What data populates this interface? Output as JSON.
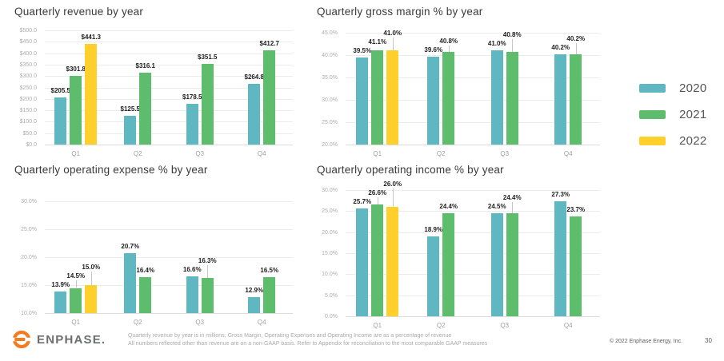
{
  "slide": {
    "logo_text": "ENPHASE.",
    "footnote_line1": "Quarterly revenue by year is in millions; Gross Margin, Operating Expenses and Operating Income are as a percentage of revenue",
    "footnote_line2": "All numbers reflected other than revenue are on a non-GAAP basis. Refer to Appendix for reconciliation to the most comparable GAAP measures",
    "copyright": "© 2022 Enphase Energy, Inc.",
    "page_number": "30"
  },
  "legend": {
    "position": "right",
    "items": [
      {
        "label": "2020",
        "color": "#5FB7C1"
      },
      {
        "label": "2021",
        "color": "#5EBC6D"
      },
      {
        "label": "2022",
        "color": "#FFD02B"
      }
    ]
  },
  "brand": {
    "logo_orange": "#F47B20"
  },
  "chart_data": [
    {
      "type": "bar",
      "title": "Quarterly revenue by year",
      "categories": [
        "Q1",
        "Q2",
        "Q3",
        "Q4"
      ],
      "series": [
        {
          "name": "2020",
          "color": "#5FB7C1",
          "values": [
            205.5,
            125.5,
            178.5,
            264.8
          ],
          "labels": [
            "$205.5",
            "$125.5",
            "$178.5",
            "$264.8"
          ]
        },
        {
          "name": "2021",
          "color": "#5EBC6D",
          "values": [
            301.8,
            316.1,
            351.5,
            412.7
          ],
          "labels": [
            "$301.8",
            "$316.1",
            "$351.5",
            "$412.7"
          ]
        },
        {
          "name": "2022",
          "color": "#FFD02B",
          "values": [
            441.3,
            null,
            null,
            null
          ],
          "labels": [
            "$441.3",
            null,
            null,
            null
          ]
        }
      ],
      "ylim": [
        0,
        500
      ],
      "ytick_step": 50,
      "ytick_labels": [
        "$0.0",
        "$50.0",
        "$100.0",
        "$150.0",
        "$200.0",
        "$250.0",
        "$300.0",
        "$350.0",
        "$400.0",
        "$450.0",
        "$500.0"
      ],
      "grid": true
    },
    {
      "type": "bar",
      "title": "Quarterly gross margin % by year",
      "categories": [
        "Q1",
        "Q2",
        "Q3",
        "Q4"
      ],
      "series": [
        {
          "name": "2020",
          "color": "#5FB7C1",
          "values": [
            39.5,
            39.6,
            41.0,
            40.2
          ],
          "labels": [
            "39.5%",
            "39.6%",
            "41.0%",
            "40.2%"
          ]
        },
        {
          "name": "2021",
          "color": "#5EBC6D",
          "values": [
            41.1,
            40.8,
            40.8,
            40.2
          ],
          "labels": [
            "41.1%",
            "40.8%",
            "40.8%",
            "40.2%"
          ]
        },
        {
          "name": "2022",
          "color": "#FFD02B",
          "values": [
            41.0,
            null,
            null,
            null
          ],
          "labels": [
            "41.0%",
            null,
            null,
            null
          ]
        }
      ],
      "ylim": [
        20,
        45
      ],
      "ytick_step": 5,
      "ytick_labels": [
        "20.0%",
        "25.0%",
        "30.0%",
        "35.0%",
        "40.0%",
        "45.0%"
      ],
      "grid": true
    },
    {
      "type": "bar",
      "title": "Quarterly operating expense % by year",
      "categories": [
        "Q1",
        "Q2",
        "Q3",
        "Q4"
      ],
      "series": [
        {
          "name": "2020",
          "color": "#5FB7C1",
          "values": [
            13.9,
            20.7,
            16.6,
            12.9
          ],
          "labels": [
            "13.9%",
            "20.7%",
            "16.6%",
            "12.9%"
          ]
        },
        {
          "name": "2021",
          "color": "#5EBC6D",
          "values": [
            14.5,
            16.4,
            16.3,
            16.5
          ],
          "labels": [
            "14.5%",
            "16.4%",
            "16.3%",
            "16.5%"
          ]
        },
        {
          "name": "2022",
          "color": "#FFD02B",
          "values": [
            15.0,
            null,
            null,
            null
          ],
          "labels": [
            "15.0%",
            null,
            null,
            null
          ]
        }
      ],
      "ylim": [
        10,
        30
      ],
      "ytick_step": 5,
      "ytick_labels": [
        "10.0%",
        "15.0%",
        "20.0%",
        "25.0%",
        "30.0%"
      ],
      "grid": true
    },
    {
      "type": "bar",
      "title": "Quarterly operating income % by year",
      "categories": [
        "Q1",
        "Q2",
        "Q3",
        "Q4"
      ],
      "series": [
        {
          "name": "2020",
          "color": "#5FB7C1",
          "values": [
            25.7,
            18.9,
            24.5,
            27.3
          ],
          "labels": [
            "25.7%",
            "18.9%",
            "24.5%",
            "27.3%"
          ]
        },
        {
          "name": "2021",
          "color": "#5EBC6D",
          "values": [
            26.6,
            24.4,
            24.4,
            23.7
          ],
          "labels": [
            "26.6%",
            "24.4%",
            "24.4%",
            "23.7%"
          ]
        },
        {
          "name": "2022",
          "color": "#FFD02B",
          "values": [
            26.0,
            null,
            null,
            null
          ],
          "labels": [
            "26.0%",
            null,
            null,
            null
          ]
        }
      ],
      "ylim": [
        0,
        30
      ],
      "ytick_step": 5,
      "ytick_labels": [
        "0.0%",
        "5.0%",
        "10.0%",
        "15.0%",
        "20.0%",
        "25.0%",
        "30.0%"
      ],
      "grid": true
    }
  ]
}
